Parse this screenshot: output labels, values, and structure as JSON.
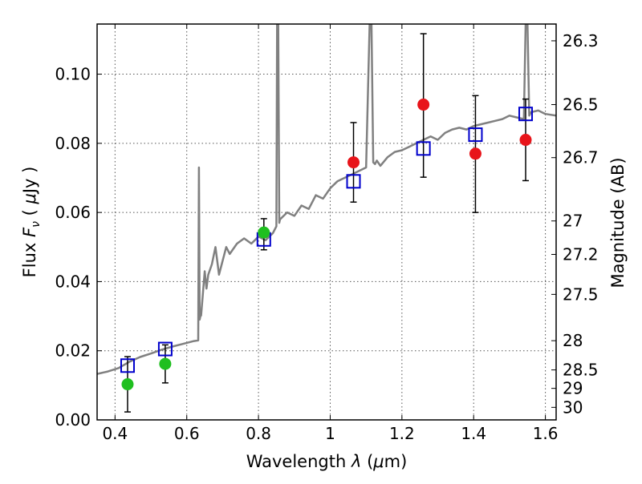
{
  "chart_data": {
    "type": "scatter",
    "xlabel_prefix": "Wavelength ",
    "xlabel_lambda": "λ",
    "xlabel_unit_open": " (",
    "xlabel_mu": "μ",
    "xlabel_unit_close": "m)",
    "ylabel_prefix": "Flux ",
    "ylabel_F": "F",
    "ylabel_nu": "ν",
    "ylabel_unit_open": " ( ",
    "ylabel_mu": "μ",
    "ylabel_unit_close": "Jy )",
    "y2label": "Magnitude (AB)",
    "xlim": [
      0.35,
      1.63
    ],
    "ylim": [
      0.0,
      0.1145
    ],
    "grid": true,
    "x_ticks": [
      0.4,
      0.6,
      0.8,
      1.0,
      1.2,
      1.4,
      1.6
    ],
    "x_tick_labels": [
      "0.4",
      "0.6",
      "0.8",
      "1",
      "1.2",
      "1.4",
      "1.6"
    ],
    "y_ticks": [
      0.0,
      0.02,
      0.04,
      0.06,
      0.08,
      0.1
    ],
    "y_tick_labels": [
      "0.00",
      "0.02",
      "0.04",
      "0.06",
      "0.08",
      "0.10"
    ],
    "y2_ticks": [
      {
        "label": "26.3",
        "mag": 26.3
      },
      {
        "label": "26.5",
        "mag": 26.5
      },
      {
        "label": "26.7",
        "mag": 26.7
      },
      {
        "label": "27",
        "mag": 27.0
      },
      {
        "label": "27.2",
        "mag": 27.2
      },
      {
        "label": "27.5",
        "mag": 27.5
      },
      {
        "label": "28",
        "mag": 28.0
      },
      {
        "label": "28.5",
        "mag": 28.5
      },
      {
        "label": "29",
        "mag": 29.0
      },
      {
        "label": "30",
        "mag": 30.0
      }
    ],
    "colors": {
      "spectrum": "#808080",
      "model": "#0000cc",
      "detection": "#e8141a",
      "green": "#1fbf1f",
      "errorbar": "#000000",
      "grid": "#555555"
    },
    "spectrum": {
      "x": [
        0.35,
        0.38,
        0.41,
        0.44,
        0.47,
        0.5,
        0.53,
        0.56,
        0.59,
        0.62,
        0.632,
        0.634,
        0.636,
        0.638,
        0.64,
        0.65,
        0.655,
        0.66,
        0.67,
        0.68,
        0.69,
        0.7,
        0.71,
        0.72,
        0.74,
        0.76,
        0.78,
        0.8,
        0.82,
        0.84,
        0.85,
        0.852,
        0.855,
        0.858,
        0.86,
        0.88,
        0.9,
        0.92,
        0.94,
        0.96,
        0.98,
        1.0,
        1.02,
        1.04,
        1.06,
        1.08,
        1.1,
        1.11,
        1.115,
        1.12,
        1.125,
        1.13,
        1.14,
        1.16,
        1.18,
        1.2,
        1.22,
        1.24,
        1.26,
        1.28,
        1.3,
        1.32,
        1.34,
        1.36,
        1.38,
        1.4,
        1.42,
        1.44,
        1.46,
        1.48,
        1.5,
        1.52,
        1.54,
        1.545,
        1.55,
        1.555,
        1.56,
        1.58,
        1.6,
        1.63
      ],
      "y": [
        0.0133,
        0.014,
        0.015,
        0.0168,
        0.0182,
        0.0192,
        0.0203,
        0.0212,
        0.022,
        0.0228,
        0.023,
        0.073,
        0.029,
        0.03,
        0.0302,
        0.043,
        0.038,
        0.042,
        0.045,
        0.05,
        0.042,
        0.046,
        0.05,
        0.048,
        0.051,
        0.0525,
        0.051,
        0.053,
        0.052,
        0.054,
        0.056,
        0.1145,
        0.1145,
        0.057,
        0.058,
        0.06,
        0.059,
        0.062,
        0.061,
        0.065,
        0.064,
        0.067,
        0.069,
        0.07,
        0.071,
        0.072,
        0.073,
        0.1145,
        0.1145,
        0.0745,
        0.074,
        0.075,
        0.0735,
        0.076,
        0.0775,
        0.078,
        0.079,
        0.08,
        0.081,
        0.082,
        0.081,
        0.083,
        0.084,
        0.0845,
        0.084,
        0.085,
        0.0855,
        0.086,
        0.0865,
        0.087,
        0.088,
        0.0875,
        0.087,
        0.1145,
        0.1145,
        0.088,
        0.089,
        0.0895,
        0.0885,
        0.088
      ]
    },
    "series": [
      {
        "kind": "model-squares",
        "x": [
          0.435,
          0.54,
          0.815,
          1.065,
          1.26,
          1.405,
          1.545
        ],
        "y": [
          0.0157,
          0.0205,
          0.0522,
          0.069,
          0.0785,
          0.0825,
          0.0885
        ]
      },
      {
        "kind": "detections-green",
        "x": [
          0.435,
          0.54,
          0.815
        ],
        "y": [
          0.0103,
          0.0162,
          0.0542
        ],
        "err_low": [
          0.008,
          0.0055,
          0.005
        ],
        "err_high": [
          0.008,
          0.0055,
          0.004
        ]
      },
      {
        "kind": "detections-red",
        "x": [
          1.065,
          1.26,
          1.405,
          1.545
        ],
        "y": [
          0.0745,
          0.0912,
          0.077,
          0.081
        ],
        "err_low": [
          0.0115,
          0.021,
          0.017,
          0.0118
        ],
        "err_high": [
          0.0115,
          0.0205,
          0.0168,
          0.0118
        ]
      }
    ]
  }
}
